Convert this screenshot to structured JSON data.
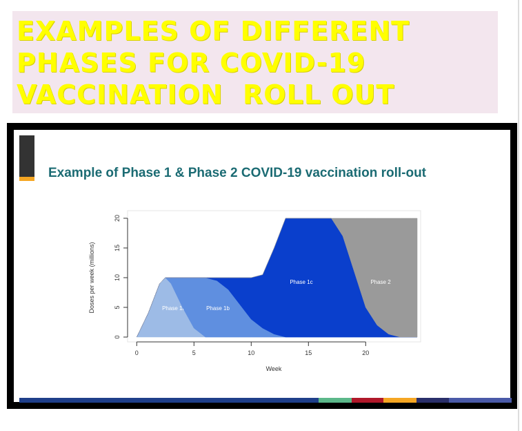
{
  "header": {
    "title_lines": [
      "EXAMPLES OF DIFFERENT",
      "PHASES FOR COVID-19",
      "VACCINATION  ROLL OUT"
    ]
  },
  "slide": {
    "title": "Example of Phase 1 & Phase 2 COVID-19 vaccination roll-out"
  },
  "chart_data": {
    "type": "stacked_area",
    "xlabel": "Week",
    "ylabel": "Doses per week (millions)",
    "x": [
      0,
      1,
      2,
      2.5,
      3,
      4,
      5,
      6,
      7,
      8,
      9,
      10,
      11,
      12,
      13,
      14,
      15,
      16,
      17,
      18,
      19,
      20,
      21,
      22,
      23,
      24,
      24.5
    ],
    "series": [
      {
        "name": "Phase 1a",
        "color": "#9dbbe6",
        "values": [
          0,
          4,
          9,
          10,
          9,
          5,
          1.5,
          0,
          0,
          0,
          0,
          0,
          0,
          0,
          0,
          0,
          0,
          0,
          0,
          0,
          0,
          0,
          0,
          0,
          0,
          0,
          0
        ]
      },
      {
        "name": "Phase 1b",
        "color": "#5f8fe0",
        "values": [
          0,
          0,
          0,
          0,
          1,
          5,
          8.5,
          10,
          9.5,
          8,
          5.5,
          3,
          1.5,
          0.5,
          0,
          0,
          0,
          0,
          0,
          0,
          0,
          0,
          0,
          0,
          0,
          0,
          0
        ]
      },
      {
        "name": "Phase 1c",
        "color": "#0a3fcc",
        "values": [
          0,
          0,
          0,
          0,
          0,
          0,
          0,
          0,
          0.5,
          2,
          4.5,
          7,
          9,
          14.5,
          20,
          20,
          20,
          20,
          20,
          17,
          11,
          5,
          2,
          0.5,
          0,
          0,
          0
        ]
      },
      {
        "name": "Phase 2",
        "color": "#9a9a9a",
        "values": [
          0,
          0,
          0,
          0,
          0,
          0,
          0,
          0,
          0,
          0,
          0,
          0,
          0,
          0,
          0,
          0,
          0,
          0,
          0,
          3,
          9,
          15,
          18,
          19.5,
          20,
          20,
          20
        ]
      }
    ],
    "xlim": [
      -0.8,
      24.8
    ],
    "ylim": [
      0,
      20
    ],
    "xticks": [
      0,
      5,
      10,
      15,
      20
    ],
    "yticks": [
      0,
      5,
      10,
      15,
      20
    ]
  }
}
